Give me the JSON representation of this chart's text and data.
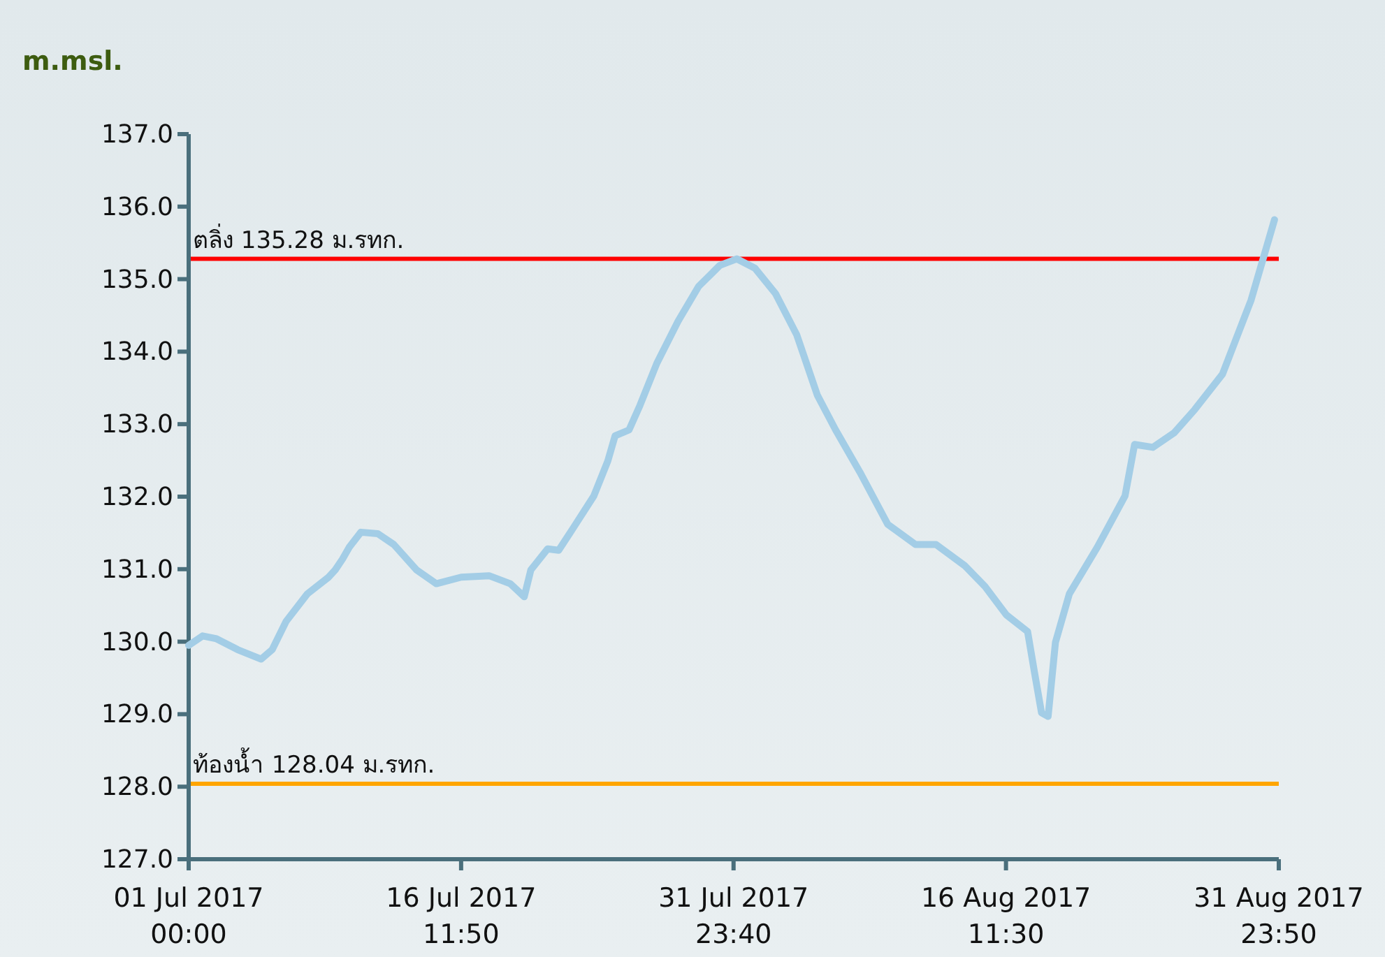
{
  "chart_data": {
    "type": "line",
    "ylabel": "m.msl.",
    "x": [
      "2017-07-01T00:00",
      "2017-07-01T19:00",
      "2017-07-02T14:00",
      "2017-07-03T19:00",
      "2017-07-05T03:00",
      "2017-07-05T18:00",
      "2017-07-06T13:00",
      "2017-07-07T18:00",
      "2017-07-08T23:00",
      "2017-07-09T08:00",
      "2017-07-09T18:00",
      "2017-07-10T03:00",
      "2017-07-10T19:00",
      "2017-07-11T18:00",
      "2017-07-12T16:00",
      "2017-07-13T23:00",
      "2017-07-15T02:00",
      "2017-07-16T12:00",
      "2017-07-18T02:00",
      "2017-07-19T07:00",
      "2017-07-20T02:00",
      "2017-07-20T11:00",
      "2017-07-21T10:00",
      "2017-07-22T01:00",
      "2017-07-22T21:00",
      "2017-07-24T01:00",
      "2017-07-24T20:00",
      "2017-07-25T06:00",
      "2017-07-26T01:00",
      "2017-07-26T16:00",
      "2017-07-27T15:00",
      "2017-07-28T20:00",
      "2017-07-30T00:00",
      "2017-07-31T05:00",
      "2017-08-01T04:00",
      "2017-08-02T05:00",
      "2017-08-03T09:00",
      "2017-08-04T14:00",
      "2017-08-05T18:00",
      "2017-08-06T19:00",
      "2017-08-08T04:00",
      "2017-08-09T18:00",
      "2017-08-11T08:00",
      "2017-08-12T12:00",
      "2017-08-14T03:00",
      "2017-08-15T07:00",
      "2017-08-16T12:00",
      "2017-08-17T17:00",
      "2017-08-18T02:00",
      "2017-08-18T12:00",
      "2017-08-18T21:00",
      "2017-08-19T07:00",
      "2017-08-20T02:00",
      "2017-08-21T16:00",
      "2017-08-23T06:00",
      "2017-08-23T19:00",
      "2017-08-24T20:00",
      "2017-08-26T01:00",
      "2017-08-27T05:00",
      "2017-08-28T19:00",
      "2017-08-30T10:00",
      "2017-08-31T18:00"
    ],
    "series": [
      {
        "color": "#a3cde6",
        "values": [
          129.95,
          130.08,
          130.04,
          129.89,
          129.76,
          129.89,
          130.28,
          130.66,
          130.89,
          130.99,
          131.14,
          131.3,
          131.51,
          131.49,
          131.34,
          130.99,
          130.8,
          130.89,
          130.91,
          130.8,
          130.62,
          130.99,
          131.28,
          131.26,
          131.57,
          132.01,
          132.49,
          132.84,
          132.92,
          133.26,
          133.84,
          134.42,
          134.9,
          135.19,
          135.28,
          135.15,
          134.8,
          134.23,
          133.4,
          132.92,
          132.34,
          131.62,
          131.34,
          131.34,
          131.05,
          130.76,
          130.37,
          130.14,
          129.6,
          129.02,
          128.97,
          129.99,
          130.66,
          131.3,
          132.01,
          132.72,
          132.68,
          132.88,
          133.2,
          133.69,
          134.71,
          135.82
        ]
      }
    ],
    "xlim": [
      "2017-07-01T00:00",
      "2017-08-31T23:50"
    ],
    "xticks": [
      {
        "value": "2017-07-01T00:00",
        "label": "01 Jul 2017\n00:00"
      },
      {
        "value": "2017-07-16T11:50",
        "label": "16 Jul 2017\n11:50"
      },
      {
        "value": "2017-07-31T23:40",
        "label": "31 Jul 2017\n23:40"
      },
      {
        "value": "2017-08-16T11:30",
        "label": "16 Aug 2017\n11:30"
      },
      {
        "value": "2017-08-31T23:50",
        "label": "31 Aug 2017\n23:50"
      }
    ],
    "ylim": [
      127,
      137
    ],
    "yticks": [
      {
        "value": 127,
        "label": "127.0"
      },
      {
        "value": 128,
        "label": "128.0"
      },
      {
        "value": 129,
        "label": "129.0"
      },
      {
        "value": 130,
        "label": "130.0"
      },
      {
        "value": 131,
        "label": "131.0"
      },
      {
        "value": 132,
        "label": "132.0"
      },
      {
        "value": 133,
        "label": "133.0"
      },
      {
        "value": 134,
        "label": "134.0"
      },
      {
        "value": 135,
        "label": "135.0"
      },
      {
        "value": 136,
        "label": "136.0"
      },
      {
        "value": 137,
        "label": "137.0"
      }
    ],
    "ref_lines": [
      {
        "axis": "y",
        "value": 135.28,
        "label": "ตลิ่ง 135.28 ม.รทก.",
        "color": "#ff0000"
      },
      {
        "axis": "y",
        "value": 128.04,
        "label": "ท้องน้ำ 128.04 ม.รทก.",
        "color": "#ffa500"
      }
    ],
    "grid": false,
    "marker": "none",
    "line_style": "solid"
  }
}
